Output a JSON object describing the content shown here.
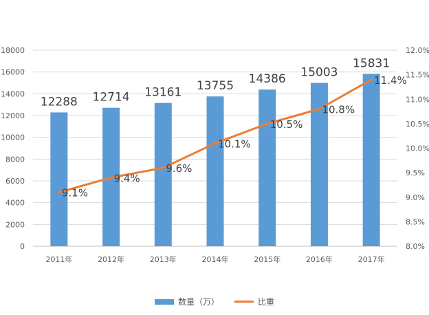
{
  "chart_data": {
    "type": "bar",
    "categories": [
      "2011年",
      "2012年",
      "2013年",
      "2014年",
      "2015年",
      "2016年",
      "2017年"
    ],
    "series": [
      {
        "name": "数量（万）",
        "type": "bar",
        "axis": "left",
        "values": [
          12288,
          12714,
          13161,
          13755,
          14386,
          15003,
          15831
        ],
        "labels": [
          "12288",
          "12714",
          "13161",
          "13755",
          "14386",
          "15003",
          "15831"
        ],
        "color": "#5b9bd5"
      },
      {
        "name": "比重",
        "type": "line",
        "axis": "right",
        "values": [
          9.1,
          9.4,
          9.6,
          10.1,
          10.5,
          10.8,
          11.4
        ],
        "labels": [
          "9.1%",
          "9.4%",
          "9.6%",
          "10.1%",
          "10.5%",
          "10.8%",
          "11.4%"
        ],
        "color": "#ed7d31"
      }
    ],
    "ylim_left": [
      0,
      18000
    ],
    "yticks_left": [
      "0",
      "2000",
      "4000",
      "6000",
      "8000",
      "10000",
      "12000",
      "14000",
      "16000",
      "18000"
    ],
    "ylim_right": [
      8.0,
      12.0
    ],
    "yticks_right": [
      "8.0%",
      "8.5%",
      "9.0%",
      "9.5%",
      "10.0%",
      "10.5%",
      "11.0%",
      "11.5%",
      "12.0%"
    ],
    "grid": true,
    "legend_position": "bottom"
  },
  "legend": {
    "bar_label": "数量（万）",
    "line_label": "比重"
  }
}
